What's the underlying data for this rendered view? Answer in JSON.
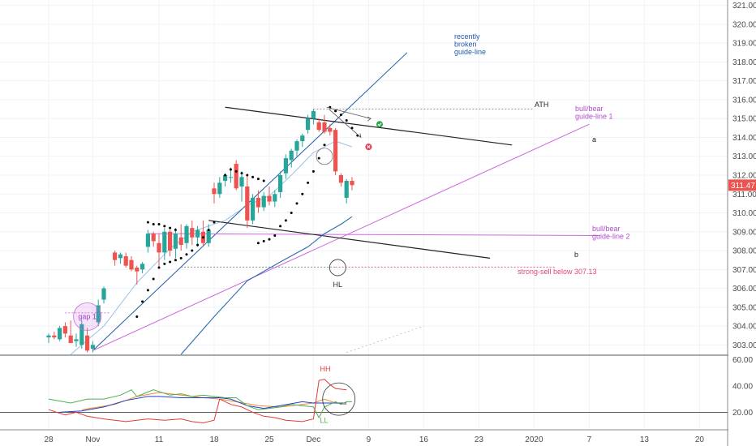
{
  "chart_data": {
    "type": "candlestick",
    "colors": {
      "up": "#26a69a",
      "down": "#ef5350",
      "psar": "#000000",
      "ema_short": "#4a8fd0",
      "ema_long": "#2b6cb0",
      "trendline_blue": "#1f5aa6",
      "trendline_magenta": "#cc66dd",
      "trendline_black": "#222222",
      "last_price": "#ef5350",
      "strong_sell": "#e0457b",
      "osc_green": "#4caf50",
      "osc_red": "#e53935",
      "osc_orange": "#ef8a30",
      "osc_blue": "#1e3fd0"
    },
    "price_axis": {
      "range": [
        302.5,
        321.2
      ],
      "ticks": [
        "321.00",
        "320.00",
        "319.00",
        "318.00",
        "317.00",
        "316.00",
        "315.00",
        "314.00",
        "313.00",
        "312.00",
        "311.00",
        "310.00",
        "309.00",
        "308.00",
        "307.00",
        "306.00",
        "305.00",
        "304.00",
        "303.00"
      ],
      "last_price_label": "311.47",
      "last_price": 311.47
    },
    "time_axis": {
      "labels": [
        "28",
        "Nov",
        "11",
        "18",
        "25",
        "Dec",
        "9",
        "16",
        "23",
        "2020",
        "7",
        "13",
        "20"
      ],
      "label_bar_index": [
        0,
        4,
        10,
        15,
        20,
        24,
        29,
        34,
        39,
        44,
        49,
        54,
        59
      ]
    },
    "candles": [
      {
        "i": 0,
        "o": 303.4,
        "h": 303.6,
        "l": 303.1,
        "c": 303.5
      },
      {
        "i": 0.5,
        "o": 303.5,
        "h": 303.7,
        "l": 303.3,
        "c": 303.4
      },
      {
        "i": 1,
        "o": 303.3,
        "h": 304.0,
        "l": 303.2,
        "c": 303.9
      },
      {
        "i": 1.5,
        "o": 304.0,
        "h": 304.2,
        "l": 303.4,
        "c": 303.6
      },
      {
        "i": 2,
        "o": 303.5,
        "h": 304.3,
        "l": 303.1,
        "c": 303.1
      },
      {
        "i": 2.5,
        "o": 303.2,
        "h": 303.6,
        "l": 302.9,
        "c": 303.3
      },
      {
        "i": 3,
        "o": 303.0,
        "h": 304.3,
        "l": 302.8,
        "c": 304.1
      },
      {
        "i": 3.5,
        "o": 303.5,
        "h": 303.9,
        "l": 302.6,
        "c": 302.7
      },
      {
        "i": 4,
        "o": 302.8,
        "h": 303.2,
        "l": 302.6,
        "c": 303.0
      },
      {
        "i": 4.5,
        "o": 304.2,
        "h": 305.4,
        "l": 304.0,
        "c": 305.1
      },
      {
        "i": 5,
        "o": 305.4,
        "h": 306.1,
        "l": 305.2,
        "c": 306.0
      },
      {
        "i": 6,
        "o": 307.9,
        "h": 308.0,
        "l": 307.2,
        "c": 307.5
      },
      {
        "i": 6.5,
        "o": 307.6,
        "h": 307.9,
        "l": 307.3,
        "c": 307.8
      },
      {
        "i": 7,
        "o": 307.7,
        "h": 307.9,
        "l": 307.1,
        "c": 307.2
      },
      {
        "i": 7.5,
        "o": 307.5,
        "h": 307.7,
        "l": 306.9,
        "c": 307.0
      },
      {
        "i": 8,
        "o": 307.1,
        "h": 307.2,
        "l": 306.2,
        "c": 306.9
      },
      {
        "i": 8.5,
        "o": 307.0,
        "h": 307.4,
        "l": 306.8,
        "c": 307.3
      },
      {
        "i": 9,
        "o": 308.2,
        "h": 309.1,
        "l": 307.9,
        "c": 308.9
      },
      {
        "i": 9.5,
        "o": 308.9,
        "h": 309.0,
        "l": 308.2,
        "c": 308.5
      },
      {
        "i": 10,
        "o": 308.4,
        "h": 308.9,
        "l": 307.1,
        "c": 307.9
      },
      {
        "i": 10.5,
        "o": 307.9,
        "h": 309.2,
        "l": 307.5,
        "c": 309.0
      },
      {
        "i": 11,
        "o": 309.0,
        "h": 309.1,
        "l": 307.7,
        "c": 308.0
      },
      {
        "i": 11.5,
        "o": 308.1,
        "h": 309.2,
        "l": 307.6,
        "c": 308.9
      },
      {
        "i": 12,
        "o": 308.7,
        "h": 309.4,
        "l": 308.0,
        "c": 308.3
      },
      {
        "i": 12.5,
        "o": 308.4,
        "h": 309.4,
        "l": 308.1,
        "c": 309.3
      },
      {
        "i": 13,
        "o": 309.2,
        "h": 309.6,
        "l": 308.3,
        "c": 308.7
      },
      {
        "i": 13.5,
        "o": 308.7,
        "h": 309.3,
        "l": 308.2,
        "c": 309.1
      },
      {
        "i": 14,
        "o": 309.0,
        "h": 309.6,
        "l": 308.2,
        "c": 308.4
      },
      {
        "i": 14.5,
        "o": 308.4,
        "h": 309.4,
        "l": 308.2,
        "c": 309.1
      },
      {
        "i": 15,
        "o": 311.3,
        "h": 311.6,
        "l": 310.5,
        "c": 311.0
      },
      {
        "i": 15.5,
        "o": 311.0,
        "h": 311.9,
        "l": 310.8,
        "c": 311.6
      },
      {
        "i": 16,
        "o": 311.7,
        "h": 312.1,
        "l": 311.4,
        "c": 312.0
      },
      {
        "i": 16.5,
        "o": 311.9,
        "h": 312.4,
        "l": 311.6,
        "c": 311.9
      },
      {
        "i": 17,
        "o": 312.6,
        "h": 312.8,
        "l": 311.2,
        "c": 311.3
      },
      {
        "i": 17.5,
        "o": 311.4,
        "h": 312.2,
        "l": 310.6,
        "c": 311.9
      },
      {
        "i": 18,
        "o": 311.4,
        "h": 312.0,
        "l": 309.2,
        "c": 309.6
      },
      {
        "i": 18.5,
        "o": 309.6,
        "h": 311.0,
        "l": 309.4,
        "c": 310.8
      },
      {
        "i": 19,
        "o": 310.8,
        "h": 311.2,
        "l": 310.0,
        "c": 310.3
      },
      {
        "i": 19.5,
        "o": 310.3,
        "h": 311.1,
        "l": 310.1,
        "c": 310.9
      },
      {
        "i": 20,
        "o": 310.9,
        "h": 311.4,
        "l": 310.4,
        "c": 310.6
      },
      {
        "i": 20.5,
        "o": 310.6,
        "h": 311.2,
        "l": 310.3,
        "c": 311.0
      },
      {
        "i": 21,
        "o": 311.1,
        "h": 312.2,
        "l": 310.8,
        "c": 312.0
      },
      {
        "i": 21.5,
        "o": 312.1,
        "h": 313.1,
        "l": 311.8,
        "c": 312.9
      },
      {
        "i": 22,
        "o": 312.8,
        "h": 313.4,
        "l": 312.4,
        "c": 313.3
      },
      {
        "i": 22.5,
        "o": 313.3,
        "h": 313.9,
        "l": 313.0,
        "c": 313.8
      },
      {
        "i": 23,
        "o": 313.8,
        "h": 314.2,
        "l": 313.5,
        "c": 314.1
      },
      {
        "i": 23.5,
        "o": 314.4,
        "h": 315.2,
        "l": 314.2,
        "c": 315.0
      },
      {
        "i": 24,
        "o": 315.0,
        "h": 315.5,
        "l": 314.7,
        "c": 315.4
      },
      {
        "i": 24.5,
        "o": 314.8,
        "h": 315.0,
        "l": 314.3,
        "c": 314.4
      },
      {
        "i": 25,
        "o": 314.8,
        "h": 315.2,
        "l": 314.2,
        "c": 314.3
      },
      {
        "i": 25.5,
        "o": 314.5,
        "h": 314.7,
        "l": 314.1,
        "c": 314.3
      },
      {
        "i": 26,
        "o": 314.4,
        "h": 314.5,
        "l": 312.0,
        "c": 312.2
      },
      {
        "i": 26.5,
        "o": 312.0,
        "h": 312.1,
        "l": 311.4,
        "c": 311.6
      },
      {
        "i": 27,
        "o": 310.8,
        "h": 311.8,
        "l": 310.5,
        "c": 311.7
      },
      {
        "i": 27.5,
        "o": 311.7,
        "h": 311.9,
        "l": 311.2,
        "c": 311.47
      }
    ],
    "psar": [
      [
        8,
        304.5
      ],
      [
        8.5,
        305.3
      ],
      [
        9,
        305.9
      ],
      [
        9.5,
        306.5
      ],
      [
        10,
        307.1
      ],
      [
        10.5,
        307.3
      ],
      [
        11,
        307.4
      ],
      [
        11.5,
        307.5
      ],
      [
        12,
        307.6
      ],
      [
        12.5,
        307.8
      ],
      [
        13,
        308.0
      ],
      [
        13.5,
        308.3
      ],
      [
        14,
        308.7
      ],
      [
        14.5,
        309.1
      ],
      [
        15,
        309.5
      ],
      [
        9,
        309.5
      ],
      [
        9.5,
        309.4
      ],
      [
        10,
        309.4
      ],
      [
        10.5,
        309.3
      ],
      [
        11,
        309.2
      ],
      [
        11.5,
        309.1
      ],
      [
        16,
        312.0
      ],
      [
        16.5,
        312.3
      ],
      [
        17,
        312.2
      ],
      [
        17.5,
        312.1
      ],
      [
        18,
        312.0
      ],
      [
        18.5,
        311.9
      ],
      [
        19,
        311.8
      ],
      [
        19.5,
        311.7
      ],
      [
        19,
        308.4
      ],
      [
        19.5,
        308.5
      ],
      [
        20,
        308.6
      ],
      [
        20.5,
        308.8
      ],
      [
        21,
        309.3
      ],
      [
        21.5,
        309.6
      ],
      [
        22,
        310.0
      ],
      [
        22.5,
        310.5
      ],
      [
        23,
        311.0
      ],
      [
        23.5,
        311.6
      ],
      [
        24,
        312.2
      ],
      [
        24.5,
        312.9
      ],
      [
        25,
        313.6
      ],
      [
        25.5,
        315.6
      ],
      [
        26,
        315.4
      ],
      [
        26.5,
        315.2
      ],
      [
        27,
        314.9
      ],
      [
        27.5,
        314.5
      ],
      [
        28,
        314.1
      ]
    ],
    "ema_short": [
      [
        2,
        302.5
      ],
      [
        5,
        304.0
      ],
      [
        8,
        306.3
      ],
      [
        11,
        308.1
      ],
      [
        13,
        309.0
      ],
      [
        16,
        309.6
      ],
      [
        18,
        310.4
      ],
      [
        20,
        310.9
      ],
      [
        22,
        312.0
      ],
      [
        24,
        313.2
      ],
      [
        26,
        313.8
      ],
      [
        27.5,
        313.5
      ]
    ],
    "ema_long": [
      [
        12,
        302.5
      ],
      [
        15,
        304.5
      ],
      [
        18,
        306.4
      ],
      [
        21,
        307.4
      ],
      [
        23.5,
        308.2
      ],
      [
        25,
        308.9
      ],
      [
        26.5,
        309.4
      ],
      [
        27.5,
        309.8
      ]
    ],
    "trendlines": [
      {
        "name": "recently broken guide-line",
        "color": "blue",
        "from": [
          4,
          302.7
        ],
        "to": [
          32.5,
          318.5
        ]
      },
      {
        "name": "bull/bear guide-line 1",
        "color": "magenta",
        "from": [
          4,
          302.7
        ],
        "to": [
          49,
          314.7
        ]
      },
      {
        "name": "bull/bear guide-line 2",
        "color": "magenta",
        "from": [
          9,
          308.9
        ],
        "to": [
          50,
          308.8
        ]
      },
      {
        "name": "a",
        "color": "black",
        "from": [
          16,
          315.6
        ],
        "to": [
          42,
          313.6
        ]
      },
      {
        "name": "b",
        "color": "black",
        "from": [
          14.5,
          309.6
        ],
        "to": [
          40,
          307.6
        ]
      }
    ],
    "levels": {
      "ath": 315.5,
      "strong_sell": 307.13,
      "hl": 307.1,
      "gap1": 304.7
    },
    "annotations": {
      "recently_broken": [
        "recently",
        "broken",
        "guide-line"
      ],
      "guide_line_1": [
        "bull/bear",
        "guide-line 1"
      ],
      "guide_line_2": [
        "bull/bear",
        "guide-line 2"
      ],
      "ath": "ATH",
      "a": "a",
      "b": "b",
      "hl": "HL",
      "gap": "gap 1",
      "strong_sell": "strong-sell below 307.13",
      "hh": "HH",
      "ll": "LL"
    },
    "oscillator": {
      "range": [
        8,
        62
      ],
      "ticks": [
        "60.00",
        "40.00",
        "20.00"
      ],
      "ref_level": 20,
      "green": [
        [
          0,
          30
        ],
        [
          2,
          27
        ],
        [
          3.5,
          30
        ],
        [
          5,
          30
        ],
        [
          6.5,
          33
        ],
        [
          7.5,
          37
        ],
        [
          8,
          32
        ],
        [
          9.5,
          37
        ],
        [
          11,
          33
        ],
        [
          12,
          34
        ],
        [
          13,
          32
        ],
        [
          14,
          33
        ],
        [
          15,
          32
        ],
        [
          16,
          31
        ],
        [
          17,
          31
        ],
        [
          18,
          25
        ],
        [
          19,
          22
        ],
        [
          20,
          23
        ],
        [
          21,
          24
        ],
        [
          22,
          26
        ],
        [
          23,
          25
        ],
        [
          24,
          24
        ],
        [
          24.5,
          16
        ],
        [
          25,
          24
        ],
        [
          26,
          28
        ],
        [
          26.5,
          26
        ],
        [
          27,
          28
        ],
        [
          27.5,
          28
        ]
      ],
      "red": [
        [
          0,
          22
        ],
        [
          1.5,
          18
        ],
        [
          2.5,
          20
        ],
        [
          3.5,
          17
        ],
        [
          5,
          15
        ],
        [
          7,
          13
        ],
        [
          8,
          14
        ],
        [
          9,
          15
        ],
        [
          10.5,
          14
        ],
        [
          12,
          15
        ],
        [
          13,
          13
        ],
        [
          14,
          12
        ],
        [
          15,
          14
        ],
        [
          15.5,
          30
        ],
        [
          16.5,
          26
        ],
        [
          17.5,
          24
        ],
        [
          18.5,
          20
        ],
        [
          19.5,
          17
        ],
        [
          20.5,
          16
        ],
        [
          21.5,
          14
        ],
        [
          23,
          13
        ],
        [
          24,
          15
        ],
        [
          24.5,
          44
        ],
        [
          25,
          45
        ],
        [
          25.5,
          41
        ],
        [
          26,
          38
        ],
        [
          27,
          37
        ]
      ],
      "orange": [
        [
          3,
          22
        ],
        [
          6,
          26
        ],
        [
          8,
          32
        ],
        [
          10,
          35
        ],
        [
          12,
          33
        ],
        [
          14,
          31
        ],
        [
          15.5,
          30
        ],
        [
          17,
          28
        ],
        [
          19,
          25
        ],
        [
          21,
          24
        ],
        [
          23,
          26
        ],
        [
          24,
          27
        ],
        [
          25,
          30
        ],
        [
          26,
          27
        ],
        [
          27,
          26
        ]
      ],
      "blue": [
        [
          1,
          20
        ],
        [
          3,
          21
        ],
        [
          5,
          24
        ],
        [
          7,
          29
        ],
        [
          9,
          32
        ],
        [
          10,
          32
        ],
        [
          12,
          31
        ],
        [
          14,
          31
        ],
        [
          15.5,
          31
        ],
        [
          16.5,
          30
        ],
        [
          18,
          25
        ],
        [
          19.5,
          23
        ],
        [
          21,
          25
        ],
        [
          23,
          28
        ],
        [
          24,
          27
        ],
        [
          25,
          27
        ],
        [
          26,
          27
        ],
        [
          27,
          27
        ]
      ]
    }
  }
}
